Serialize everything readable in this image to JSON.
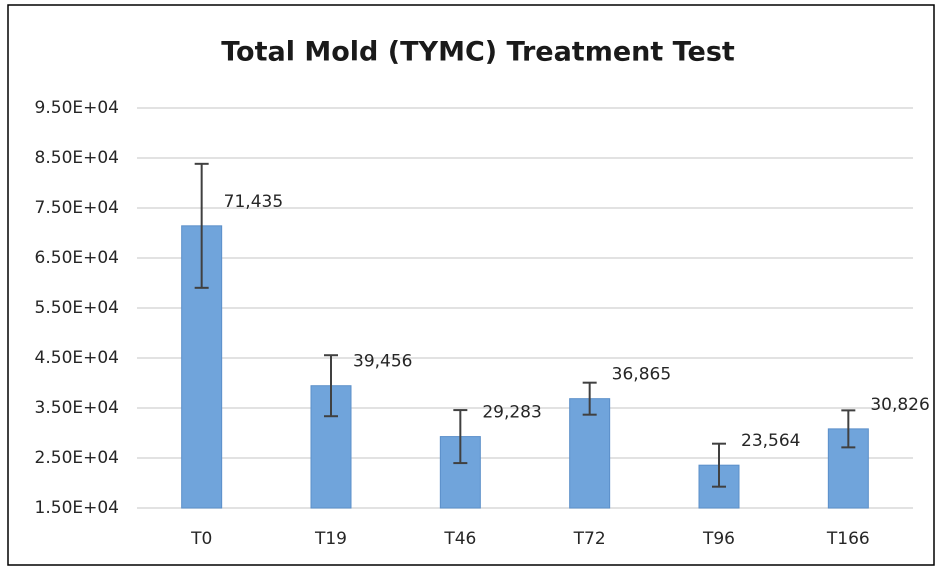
{
  "chart_data": {
    "type": "bar",
    "title": "Total Mold (TYMC) Treatment Test",
    "categories": [
      "T0",
      "T19",
      "T46",
      "T72",
      "T96",
      "T166"
    ],
    "values": [
      71435,
      39456,
      29283,
      36865,
      23564,
      30826
    ],
    "value_labels": [
      "71,435",
      "39,456",
      "29,283",
      "36,865",
      "23,564",
      "30,826"
    ],
    "errors": [
      12400,
      6100,
      5300,
      3200,
      4300,
      3700
    ],
    "color": "#70a4db",
    "error_color": "#404040",
    "ylim": [
      15000,
      95000
    ],
    "yticks": [
      {
        "value": 15000,
        "label": "1.50E+04"
      },
      {
        "value": 25000,
        "label": "2.50E+04"
      },
      {
        "value": 35000,
        "label": "3.50E+04"
      },
      {
        "value": 45000,
        "label": "4.50E+04"
      },
      {
        "value": 55000,
        "label": "5.50E+04"
      },
      {
        "value": 65000,
        "label": "6.50E+04"
      },
      {
        "value": 75000,
        "label": "7.50E+04"
      },
      {
        "value": 85000,
        "label": "8.50E+04"
      },
      {
        "value": 95000,
        "label": "9.50E+04"
      }
    ],
    "grid": true
  }
}
